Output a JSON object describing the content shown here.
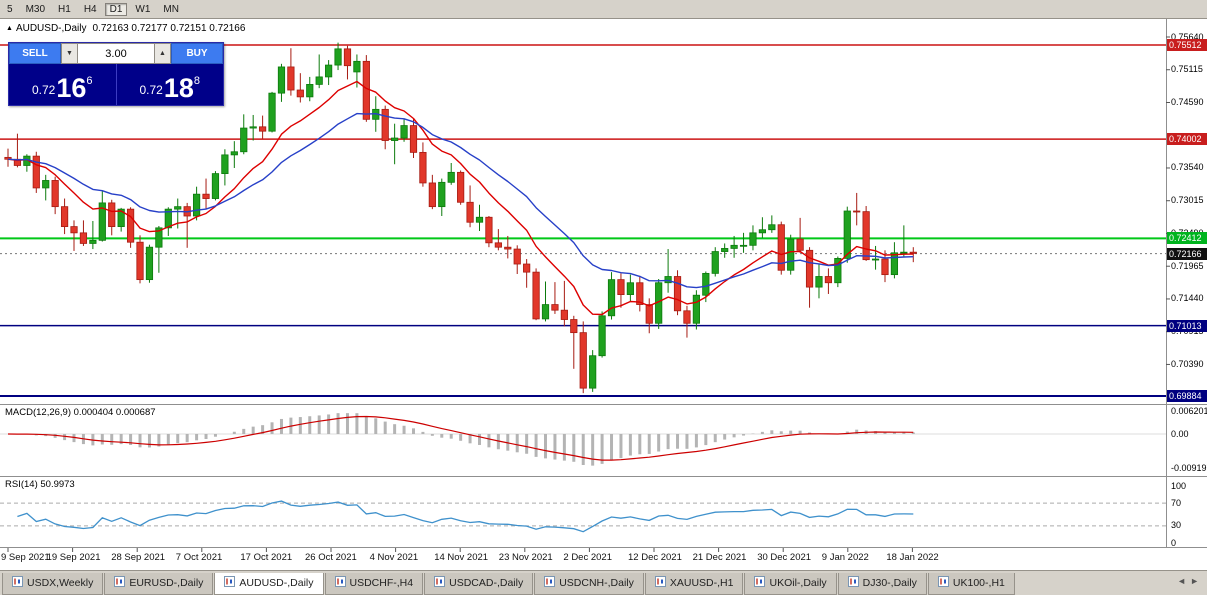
{
  "icons": {
    "symbol_marker": "▲",
    "spinner_up": "▲",
    "spinner_down": "▼",
    "tab_prev": "◄",
    "tab_next": "►"
  },
  "toolbar": {
    "timeframes": [
      {
        "label": "5",
        "active": false
      },
      {
        "label": "M30",
        "active": false
      },
      {
        "label": "H1",
        "active": false
      },
      {
        "label": "H4",
        "active": false
      },
      {
        "label": "D1",
        "active": true
      },
      {
        "label": "W1",
        "active": false
      },
      {
        "label": "MN",
        "active": false
      }
    ]
  },
  "chart": {
    "symbol": "AUDUSD-,Daily",
    "ohlc_text": "0.72163 0.72177 0.72151 0.72166"
  },
  "trade_panel": {
    "sell_label": "SELL",
    "buy_label": "BUY",
    "volume": "3.00",
    "sell_price_prefix": "0.72",
    "sell_price_big": "16",
    "sell_price_sup": "6",
    "buy_price_prefix": "0.72",
    "buy_price_big": "18",
    "buy_price_sup": "8"
  },
  "price_axis": {
    "labels": [
      "0.75640",
      "0.75115",
      "0.74590",
      "0.73540",
      "0.73015",
      "0.72490",
      "0.71965",
      "0.71440",
      "0.70915",
      "0.70390"
    ],
    "badges": [
      {
        "text": "0.75512",
        "bg": "#c81e1e"
      },
      {
        "text": "0.74002",
        "bg": "#c81e1e"
      },
      {
        "text": "0.72412",
        "bg": "#00b41e"
      },
      {
        "text": "0.72166",
        "bg": "#101010"
      },
      {
        "text": "0.71013",
        "bg": "#000080"
      },
      {
        "text": "0.69884",
        "bg": "#000080"
      }
    ]
  },
  "indicators": {
    "macd": {
      "label": "MACD(12,26,9)",
      "values": "0.000404 0.000687",
      "axis": [
        "0.006201",
        "0.00",
        "-0.009197"
      ]
    },
    "rsi": {
      "label": "RSI(14)",
      "value": "50.9973",
      "axis": [
        "100",
        "70",
        "30",
        "0"
      ]
    }
  },
  "dates": [
    "9 Sep 2021",
    "19 Sep 2021",
    "28 Sep 2021",
    "7 Oct 2021",
    "17 Oct 2021",
    "26 Oct 2021",
    "4 Nov 2021",
    "14 Nov 2021",
    "23 Nov 2021",
    "2 Dec 2021",
    "12 Dec 2021",
    "21 Dec 2021",
    "30 Dec 2021",
    "9 Jan 2022",
    "18 Jan 2022"
  ],
  "tabs": [
    {
      "label": "USDX,Weekly",
      "active": false
    },
    {
      "label": "EURUSD-,Daily",
      "active": false
    },
    {
      "label": "AUDUSD-,Daily",
      "active": true
    },
    {
      "label": "USDCHF-,H4",
      "active": false
    },
    {
      "label": "USDCAD-,Daily",
      "active": false
    },
    {
      "label": "USDCNH-,Daily",
      "active": false
    },
    {
      "label": "XAUUSD-,H1",
      "active": false
    },
    {
      "label": "UKOil-,Daily",
      "active": false
    },
    {
      "label": "DJ30-,Daily",
      "active": false
    },
    {
      "label": "UK100-,H1",
      "active": false
    }
  ],
  "chart_data": {
    "type": "candlestick",
    "symbol": "AUDUSD-,Daily",
    "current_bid": 0.72166,
    "colors": {
      "up": "#1fa11f",
      "up_border": "#0c7a0c",
      "down": "#e1372a",
      "down_border": "#a61b12",
      "ma_fast": "#dd0000",
      "ma_slow": "#2740c8",
      "macd_hist": "#b4b4b4",
      "macd_signal": "#cc0000",
      "rsi": "#3f91cc"
    },
    "ma": [
      {
        "type": "ema",
        "period": 10,
        "color": "#dd0000"
      },
      {
        "type": "ema",
        "period": 21,
        "color": "#2740c8"
      }
    ],
    "hlines": [
      {
        "price": 0.75512,
        "color": "#cc1414",
        "width": 1.5
      },
      {
        "price": 0.74002,
        "color": "#cc1414",
        "width": 1.5
      },
      {
        "price": 0.72412,
        "color": "#00c818",
        "width": 2
      },
      {
        "price": 0.71013,
        "color": "#000080",
        "width": 1.5
      },
      {
        "price": 0.69884,
        "color": "#000080",
        "width": 2
      }
    ],
    "candles": [
      [
        0.7371,
        0.7385,
        0.7356,
        0.7368
      ],
      [
        0.7368,
        0.7409,
        0.7355,
        0.7358
      ],
      [
        0.7358,
        0.7376,
        0.7348,
        0.7373
      ],
      [
        0.7373,
        0.738,
        0.7314,
        0.7322
      ],
      [
        0.7322,
        0.7343,
        0.7302,
        0.7334
      ],
      [
        0.7334,
        0.734,
        0.728,
        0.7292
      ],
      [
        0.7292,
        0.7305,
        0.7248,
        0.726
      ],
      [
        0.726,
        0.727,
        0.7221,
        0.725
      ],
      [
        0.725,
        0.727,
        0.7229,
        0.7233
      ],
      [
        0.7233,
        0.7269,
        0.7224,
        0.7238
      ],
      [
        0.7238,
        0.7317,
        0.7236,
        0.7298
      ],
      [
        0.7298,
        0.7303,
        0.7246,
        0.726
      ],
      [
        0.726,
        0.729,
        0.7252,
        0.7288
      ],
      [
        0.7288,
        0.7291,
        0.7226,
        0.7235
      ],
      [
        0.7235,
        0.7246,
        0.7169,
        0.7175
      ],
      [
        0.7175,
        0.7231,
        0.717,
        0.7227
      ],
      [
        0.7227,
        0.7261,
        0.7186,
        0.7258
      ],
      [
        0.7258,
        0.7291,
        0.7245,
        0.7288
      ],
      [
        0.7288,
        0.7305,
        0.7257,
        0.7292
      ],
      [
        0.7292,
        0.7298,
        0.7226,
        0.7277
      ],
      [
        0.7277,
        0.7324,
        0.727,
        0.7312
      ],
      [
        0.7312,
        0.7337,
        0.7288,
        0.7305
      ],
      [
        0.7305,
        0.7349,
        0.7302,
        0.7345
      ],
      [
        0.7345,
        0.7384,
        0.7326,
        0.7375
      ],
      [
        0.7375,
        0.7397,
        0.7354,
        0.738
      ],
      [
        0.738,
        0.744,
        0.7376,
        0.7418
      ],
      [
        0.7418,
        0.7439,
        0.7398,
        0.742
      ],
      [
        0.742,
        0.7438,
        0.7401,
        0.7413
      ],
      [
        0.7413,
        0.7476,
        0.7411,
        0.7474
      ],
      [
        0.7474,
        0.7521,
        0.746,
        0.7516
      ],
      [
        0.7516,
        0.7546,
        0.747,
        0.7479
      ],
      [
        0.7479,
        0.7506,
        0.7459,
        0.7468
      ],
      [
        0.7468,
        0.75,
        0.7461,
        0.7488
      ],
      [
        0.7488,
        0.7536,
        0.7482,
        0.75
      ],
      [
        0.75,
        0.7527,
        0.7487,
        0.7519
      ],
      [
        0.7519,
        0.7555,
        0.7511,
        0.7545
      ],
      [
        0.7545,
        0.755,
        0.7496,
        0.7518
      ],
      [
        0.7508,
        0.7536,
        0.7483,
        0.7525
      ],
      [
        0.7525,
        0.7535,
        0.7428,
        0.7432
      ],
      [
        0.7432,
        0.7469,
        0.7412,
        0.7448
      ],
      [
        0.7448,
        0.7454,
        0.7384,
        0.7398
      ],
      [
        0.7398,
        0.7425,
        0.736,
        0.7402
      ],
      [
        0.7402,
        0.7432,
        0.7396,
        0.7422
      ],
      [
        0.7422,
        0.7432,
        0.737,
        0.7379
      ],
      [
        0.7379,
        0.7395,
        0.7324,
        0.733
      ],
      [
        0.733,
        0.7343,
        0.7288,
        0.7292
      ],
      [
        0.7292,
        0.7337,
        0.7277,
        0.7331
      ],
      [
        0.7331,
        0.7362,
        0.7327,
        0.7347
      ],
      [
        0.7347,
        0.735,
        0.7295,
        0.7299
      ],
      [
        0.7299,
        0.7326,
        0.7259,
        0.7267
      ],
      [
        0.7267,
        0.7295,
        0.7253,
        0.7275
      ],
      [
        0.7275,
        0.7277,
        0.7227,
        0.7234
      ],
      [
        0.7234,
        0.7256,
        0.7222,
        0.7227
      ],
      [
        0.7227,
        0.7245,
        0.7209,
        0.7224
      ],
      [
        0.7224,
        0.723,
        0.7184,
        0.72
      ],
      [
        0.72,
        0.7208,
        0.7162,
        0.7187
      ],
      [
        0.7187,
        0.7193,
        0.711,
        0.7112
      ],
      [
        0.7112,
        0.7172,
        0.7108,
        0.7135
      ],
      [
        0.7135,
        0.7171,
        0.712,
        0.7126
      ],
      [
        0.7126,
        0.7173,
        0.71,
        0.7111
      ],
      [
        0.7111,
        0.7117,
        0.7032,
        0.709
      ],
      [
        0.709,
        0.7108,
        0.6993,
        0.7001
      ],
      [
        0.7001,
        0.7062,
        0.6995,
        0.7053
      ],
      [
        0.7053,
        0.7124,
        0.705,
        0.7117
      ],
      [
        0.7117,
        0.7187,
        0.7111,
        0.7175
      ],
      [
        0.7175,
        0.7185,
        0.713,
        0.7151
      ],
      [
        0.7151,
        0.7183,
        0.714,
        0.717
      ],
      [
        0.717,
        0.7181,
        0.7124,
        0.7135
      ],
      [
        0.7135,
        0.7145,
        0.7089,
        0.7105
      ],
      [
        0.7105,
        0.7176,
        0.7096,
        0.717
      ],
      [
        0.717,
        0.7224,
        0.7154,
        0.718
      ],
      [
        0.718,
        0.719,
        0.7118,
        0.7125
      ],
      [
        0.7125,
        0.7133,
        0.7082,
        0.7105
      ],
      [
        0.7105,
        0.7158,
        0.7095,
        0.715
      ],
      [
        0.715,
        0.7188,
        0.7139,
        0.7185
      ],
      [
        0.7185,
        0.7227,
        0.718,
        0.722
      ],
      [
        0.722,
        0.7233,
        0.721,
        0.7225
      ],
      [
        0.7225,
        0.7245,
        0.721,
        0.723
      ],
      [
        0.723,
        0.725,
        0.7218,
        0.723
      ],
      [
        0.723,
        0.7262,
        0.7222,
        0.725
      ],
      [
        0.725,
        0.7275,
        0.7242,
        0.7255
      ],
      [
        0.7255,
        0.7278,
        0.725,
        0.7263
      ],
      [
        0.7263,
        0.7268,
        0.7183,
        0.719
      ],
      [
        0.719,
        0.7247,
        0.7183,
        0.724
      ],
      [
        0.724,
        0.7274,
        0.7218,
        0.7222
      ],
      [
        0.7222,
        0.7227,
        0.713,
        0.7163
      ],
      [
        0.7163,
        0.7201,
        0.7145,
        0.718
      ],
      [
        0.718,
        0.7193,
        0.7152,
        0.717
      ],
      [
        0.717,
        0.7212,
        0.7163,
        0.7209
      ],
      [
        0.7209,
        0.7292,
        0.7202,
        0.7285
      ],
      [
        0.7285,
        0.7314,
        0.7262,
        0.7284
      ],
      [
        0.7284,
        0.7293,
        0.7205,
        0.7207
      ],
      [
        0.7207,
        0.7229,
        0.7191,
        0.7208
      ],
      [
        0.7208,
        0.7222,
        0.7171,
        0.7183
      ],
      [
        0.7183,
        0.7235,
        0.7177,
        0.7218
      ],
      [
        0.7218,
        0.7262,
        0.7212,
        0.7219
      ],
      [
        0.7219,
        0.7227,
        0.7203,
        0.7217
      ]
    ]
  }
}
